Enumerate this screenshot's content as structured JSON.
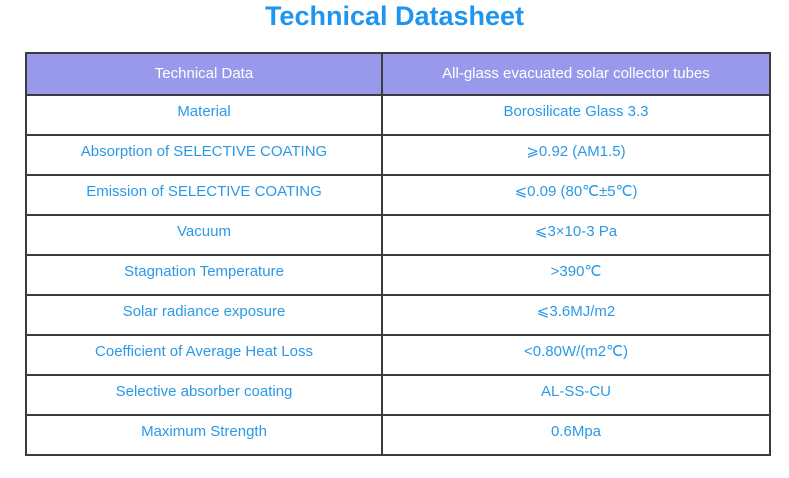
{
  "page_title": "Technical Datasheet",
  "colors": {
    "title_blue": "#1E96F0",
    "cell_text_blue": "#2B99E6",
    "header_bg": "#9999EB",
    "header_text": "#FFFFFF",
    "border": "#3C3C3C",
    "page_bg": "#FFFFFF"
  },
  "table": {
    "header": {
      "col1": "Technical Data",
      "col2": "All-glass evacuated solar collector tubes"
    },
    "rows": [
      {
        "label": "Material",
        "value": "Borosilicate Glass 3.3"
      },
      {
        "label": "Absorption of SELECTIVE COATING",
        "value": "⩾0.92 (AM1.5)"
      },
      {
        "label": "Emission of SELECTIVE COATING",
        "value": "⩽0.09 (80℃±5℃)"
      },
      {
        "label": "Vacuum",
        "value": "⩽3×10-3 Pa"
      },
      {
        "label": "Stagnation Temperature",
        "value": ">390℃"
      },
      {
        "label": "Solar radiance exposure",
        "value": "⩽3.6MJ/m2"
      },
      {
        "label": "Coefficient of Average Heat Loss",
        "value": "<0.80W/(m2℃)"
      },
      {
        "label": "Selective absorber coating",
        "value": "AL-SS-CU"
      },
      {
        "label": "Maximum Strength",
        "value": "0.6Mpa"
      }
    ]
  }
}
